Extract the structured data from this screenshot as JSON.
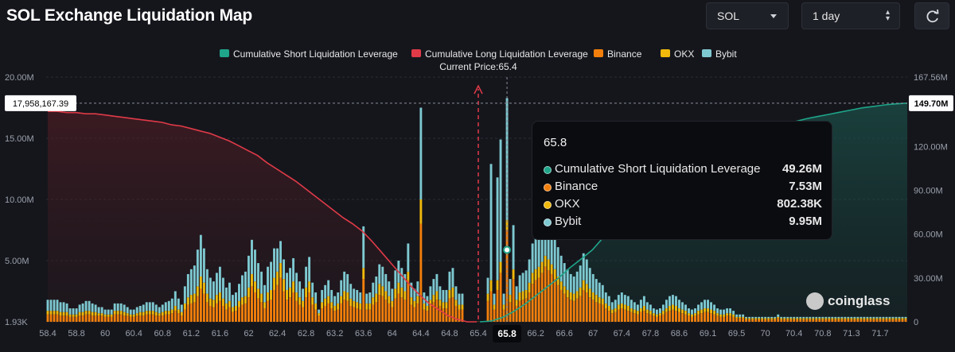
{
  "header": {
    "title": "SOL Exchange Liquidation Map",
    "symbol_select": "SOL",
    "range_select": "1 day"
  },
  "colors": {
    "background": "#15161c",
    "short_line": "#1ea58a",
    "long_line": "#e03a48",
    "binance": "#f27f0c",
    "okx": "#f0b90b",
    "bybit": "#7ec9d1"
  },
  "icons": {
    "symbol_caret": "chevron-down-icon",
    "range_caret": "up-down-icon",
    "refresh": "refresh-icon",
    "watermark": "coinglass-logo-icon"
  },
  "tooltip": {
    "title": "65.8",
    "rows": [
      {
        "label": "Cumulative Short Liquidation Leverage",
        "value": "49.26M",
        "color": "#1ea58a"
      },
      {
        "label": "Binance",
        "value": "7.53M",
        "color": "#f27f0c"
      },
      {
        "label": "OKX",
        "value": "802.38K",
        "color": "#f0b90b"
      },
      {
        "label": "Bybit",
        "value": "9.95M",
        "color": "#7ec9d1"
      }
    ]
  },
  "watermark": "coinglass",
  "chart_data": {
    "type": "bar",
    "legend": [
      "Cumulative Short Liquidation Leverage",
      "Cumulative Long Liquidation Leverage",
      "Binance",
      "OKX",
      "Bybit"
    ],
    "legend_position": "top-center",
    "current_price_label": "Current Price:65.4",
    "current_price": 65.4,
    "hover_value_left": "17,958,167.39",
    "hover_value_right": "149.70M",
    "hover_category": "65.8",
    "left_axis": {
      "ticks": [
        "20.00M",
        "15.00M",
        "10.00M",
        "5.00M",
        "1.93K"
      ],
      "values": [
        20000000,
        15000000,
        10000000,
        5000000,
        1930
      ],
      "ylim": [
        0,
        20000000
      ]
    },
    "right_axis": {
      "ticks": [
        "167.56M",
        "120.00M",
        "90.00M",
        "60.00M",
        "30.00M",
        "0"
      ],
      "values": [
        167560000,
        120000000,
        90000000,
        60000000,
        30000000,
        0
      ],
      "ylim": [
        0,
        167560000
      ]
    },
    "x_labels": [
      "58.4",
      "58.8",
      "60",
      "60.4",
      "60.8",
      "61.2",
      "61.6",
      "62",
      "62.4",
      "62.8",
      "63.2",
      "63.6",
      "64",
      "64.4",
      "64.8",
      "65.4",
      "65.8",
      "66.2",
      "66.6",
      "67",
      "67.4",
      "67.8",
      "68.6",
      "69.1",
      "69.5",
      "70",
      "70.4",
      "70.8",
      "71.3",
      "71.7"
    ],
    "x_label_index": [
      0,
      9,
      18,
      27,
      36,
      45,
      54,
      63,
      72,
      81,
      90,
      99,
      108,
      117,
      126,
      135,
      144,
      153,
      162,
      171,
      180,
      189,
      198,
      207,
      216,
      225,
      234,
      243,
      252,
      261
    ],
    "bar_count": 270,
    "bars_binance": [
      0.6,
      0.6,
      0.6,
      0.6,
      0.5,
      0.5,
      0.5,
      0.4,
      0.4,
      0.4,
      0.5,
      0.5,
      0.6,
      0.6,
      0.5,
      0.5,
      0.5,
      0.5,
      0.4,
      0.4,
      0.4,
      0.6,
      0.6,
      0.6,
      0.5,
      0.5,
      0.4,
      0.4,
      0.5,
      0.5,
      0.5,
      0.6,
      0.6,
      0.6,
      0.5,
      0.5,
      0.5,
      0.6,
      0.6,
      0.7,
      0.9,
      0.7,
      0.5,
      1.0,
      1.4,
      1.5,
      1.6,
      2.1,
      2.7,
      2.3,
      1.6,
      1.3,
      1.2,
      1.5,
      1.7,
      1.3,
      1.0,
      1.2,
      0.8,
      0.9,
      1.2,
      1.4,
      1.5,
      2.0,
      2.9,
      2.4,
      1.9,
      1.6,
      1.1,
      1.7,
      1.8,
      2.6,
      3.0,
      3.6,
      2.5,
      1.8,
      2.0,
      2.4,
      1.7,
      1.4,
      1.2,
      2.0,
      2.4,
      1.4,
      1.0,
      0.8,
      1.1,
      1.3,
      1.5,
      1.1,
      0.9,
      1.0,
      1.5,
      1.8,
      1.7,
      1.3,
      1.2,
      1.1,
      1.0,
      0.9,
      1.0,
      1.0,
      1.4,
      1.6,
      2.2,
      2.1,
      1.8,
      1.5,
      1.2,
      1.9,
      2.3,
      2.0,
      1.8,
      1.6,
      1.4,
      1.2,
      1.5,
      1.4,
      1.0,
      0.9,
      1.3,
      1.6,
      1.8,
      1.3,
      1.1,
      1.1,
      1.9,
      2.0,
      1.3,
      1.0,
      1.0,
      1.5,
      1.6,
      1.3,
      1.0,
      0.9,
      1.3,
      1.5,
      1.7,
      1.4,
      1.0,
      0.8,
      0.6,
      1.0,
      1.5,
      1.6,
      1.5,
      1.3,
      1.7,
      1.8,
      1.9,
      2.4,
      3.1,
      3.4,
      3.6,
      4.0,
      4.5,
      4.2,
      3.9,
      3.5,
      3.0,
      2.6,
      2.3,
      2.0,
      1.8,
      1.7,
      1.9,
      2.1,
      2.6,
      2.4,
      2.0,
      1.8,
      1.6,
      1.5,
      1.4,
      1.1,
      0.9,
      0.7,
      0.8,
      1.0,
      1.1,
      1.0,
      0.9,
      0.8,
      0.7,
      0.6,
      0.8,
      0.9,
      0.7,
      0.6,
      0.5,
      0.4,
      0.5,
      0.6,
      0.8,
      0.9,
      1.0,
      0.9,
      0.8,
      0.7,
      0.6,
      0.5,
      0.4,
      0.5,
      0.6,
      0.7,
      0.8,
      0.8,
      0.7,
      0.6,
      0.5,
      0.4,
      0.4,
      0.5,
      0.5,
      0.4,
      0.3,
      0.3,
      0.3,
      0.2,
      0.2,
      0.2,
      0.2,
      0.2,
      0.2,
      0.2,
      0.2,
      0.2,
      0.2,
      0.3,
      0.2,
      0.2,
      0.2,
      0.2,
      0.2,
      0.2,
      0.2,
      0.2,
      0.2,
      0.2,
      0.2,
      0.2,
      0.2,
      0.2,
      0.2,
      0.2,
      0.2,
      0.2,
      0.2,
      0.2,
      0.2,
      0.2,
      0.2,
      0.2,
      0.2,
      0.2,
      0.2,
      0.2,
      0.2,
      0.2,
      0.2,
      0.2,
      0.2,
      0.2,
      0.2,
      0.2,
      0.2,
      0.2,
      0.2,
      0.2,
      0.2,
      0.2,
      0.2,
      0.2
    ],
    "bars_okx": [
      0.3,
      0.3,
      0.3,
      0.3,
      0.3,
      0.3,
      0.3,
      0.2,
      0.2,
      0.2,
      0.3,
      0.3,
      0.3,
      0.3,
      0.3,
      0.3,
      0.2,
      0.2,
      0.2,
      0.2,
      0.2,
      0.3,
      0.3,
      0.3,
      0.3,
      0.2,
      0.2,
      0.2,
      0.2,
      0.3,
      0.3,
      0.3,
      0.3,
      0.3,
      0.3,
      0.2,
      0.3,
      0.3,
      0.3,
      0.3,
      0.4,
      0.3,
      0.3,
      0.5,
      0.6,
      0.7,
      0.7,
      0.8,
      1.0,
      0.9,
      0.7,
      0.6,
      0.6,
      0.7,
      0.7,
      0.6,
      0.5,
      0.5,
      0.4,
      0.4,
      0.5,
      0.6,
      0.6,
      0.8,
      1.0,
      0.9,
      0.8,
      0.7,
      0.5,
      0.7,
      0.8,
      1.0,
      1.1,
      1.2,
      1.0,
      0.8,
      0.8,
      0.9,
      0.7,
      0.6,
      0.5,
      0.8,
      0.9,
      0.6,
      0.5,
      0.4,
      0.5,
      0.6,
      0.6,
      0.5,
      0.4,
      0.5,
      0.6,
      0.7,
      0.7,
      0.6,
      0.5,
      0.5,
      0.5,
      0.4,
      0.5,
      0.5,
      0.6,
      0.7,
      0.9,
      0.8,
      0.7,
      0.6,
      0.5,
      0.8,
      0.9,
      0.8,
      0.7,
      0.7,
      0.6,
      0.5,
      0.6,
      0.6,
      0.5,
      0.4,
      0.5,
      0.6,
      0.7,
      0.5,
      0.5,
      0.5,
      0.7,
      0.8,
      0.5,
      0.4,
      0.4,
      0.6,
      0.6,
      0.5,
      0.4,
      0.4,
      0.5,
      0.6,
      0.6,
      0.5,
      0.4,
      0.3,
      0.3,
      0.4,
      0.6,
      0.6,
      0.6,
      0.5,
      0.7,
      0.7,
      0.7,
      0.8,
      0.9,
      0.9,
      0.9,
      0.9,
      0.9,
      0.9,
      0.8,
      0.8,
      0.7,
      0.7,
      0.6,
      0.6,
      0.6,
      0.6,
      0.6,
      0.7,
      0.8,
      0.7,
      0.7,
      0.6,
      0.6,
      0.5,
      0.5,
      0.4,
      0.4,
      0.3,
      0.3,
      0.4,
      0.4,
      0.4,
      0.4,
      0.3,
      0.3,
      0.3,
      0.3,
      0.4,
      0.3,
      0.3,
      0.2,
      0.2,
      0.2,
      0.3,
      0.3,
      0.4,
      0.4,
      0.4,
      0.3,
      0.3,
      0.3,
      0.2,
      0.2,
      0.2,
      0.3,
      0.3,
      0.3,
      0.3,
      0.3,
      0.3,
      0.2,
      0.2,
      0.2,
      0.2,
      0.2,
      0.2,
      0.1,
      0.1,
      0.1,
      0.1,
      0.1,
      0.1,
      0.1,
      0.1,
      0.1,
      0.1,
      0.1,
      0.1,
      0.1,
      0.1,
      0.1,
      0.1,
      0.1,
      0.1,
      0.1,
      0.1,
      0.1,
      0.1,
      0.1,
      0.1,
      0.1,
      0.1,
      0.1,
      0.1,
      0.1,
      0.1,
      0.1,
      0.1,
      0.1,
      0.1,
      0.1,
      0.1,
      0.1,
      0.1,
      0.1,
      0.1,
      0.1,
      0.1,
      0.1,
      0.1,
      0.1,
      0.1,
      0.1,
      0.1,
      0.1,
      0.1,
      0.1,
      0.1,
      0.1,
      0.1,
      0.1,
      0.1,
      0.1,
      0.1,
      0.1
    ],
    "bars_bybit": [
      0.9,
      0.9,
      0.9,
      0.9,
      0.8,
      0.8,
      0.7,
      0.5,
      0.5,
      0.5,
      0.6,
      0.7,
      0.8,
      0.8,
      0.7,
      0.6,
      0.5,
      0.5,
      0.4,
      0.4,
      0.4,
      0.6,
      0.6,
      0.6,
      0.6,
      0.5,
      0.4,
      0.4,
      0.5,
      0.5,
      0.6,
      0.7,
      0.7,
      0.7,
      0.6,
      0.5,
      0.6,
      0.7,
      0.8,
      0.9,
      1.2,
      0.9,
      0.6,
      1.4,
      1.9,
      2.1,
      2.3,
      3.0,
      3.4,
      2.8,
      2.0,
      1.7,
      1.5,
      1.8,
      2.1,
      1.7,
      1.3,
      1.5,
      1.0,
      1.1,
      1.4,
      1.8,
      2.0,
      2.6,
      2.8,
      2.6,
      2.1,
      1.8,
      1.4,
      2.1,
      2.3,
      2.4,
      1.9,
      1.8,
      1.6,
      1.4,
      1.6,
      1.9,
      1.6,
      1.3,
      1.0,
      1.7,
      2.0,
      1.2,
      0.9,
      0.8,
      1.0,
      1.1,
      1.3,
      1.0,
      0.8,
      0.9,
      1.3,
      1.6,
      1.5,
      1.2,
      1.0,
      1.0,
      0.9,
      0.8,
      0.8,
      0.9,
      1.2,
      1.4,
      1.6,
      1.6,
      1.4,
      1.2,
      1.0,
      1.5,
      1.8,
      1.6,
      1.4,
      1.3,
      1.2,
      1.0,
      1.2,
      1.1,
      0.9,
      0.8,
      1.1,
      1.3,
      1.4,
      1.1,
      1.0,
      1.0,
      1.5,
      1.6,
      1.1,
      0.9,
      0.9,
      1.2,
      1.3,
      1.1,
      0.9,
      0.8,
      1.1,
      1.2,
      1.3,
      1.1,
      0.9,
      0.7,
      0.6,
      0.9,
      1.2,
      1.3,
      1.2,
      1.1,
      1.4,
      1.5,
      1.6,
      1.9,
      2.4,
      2.6,
      2.8,
      3.1,
      3.5,
      3.3,
      3.0,
      2.7,
      2.4,
      2.1,
      1.9,
      1.7,
      1.5,
      1.4,
      1.6,
      1.8,
      2.2,
      2.0,
      1.7,
      1.5,
      1.3,
      1.2,
      1.1,
      0.9,
      0.8,
      0.6,
      0.7,
      0.8,
      0.9,
      0.8,
      0.8,
      0.7,
      0.6,
      0.5,
      0.7,
      0.8,
      0.6,
      0.5,
      0.4,
      0.4,
      0.4,
      0.5,
      0.7,
      0.8,
      0.8,
      0.8,
      0.7,
      0.6,
      0.5,
      0.4,
      0.4,
      0.4,
      0.5,
      0.6,
      0.7,
      0.7,
      0.6,
      0.5,
      0.4,
      0.4,
      0.4,
      0.4,
      0.4,
      0.3,
      0.2,
      0.2,
      0.2,
      0.1,
      0.1,
      0.1,
      0.1,
      0.1,
      0.1,
      0.1,
      0.1,
      0.1,
      0.1,
      0.2,
      0.1,
      0.1,
      0.1,
      0.1,
      0.1,
      0.1,
      0.1,
      0.1,
      0.1,
      0.1,
      0.1,
      0.1,
      0.1,
      0.1,
      0.1,
      0.1,
      0.1,
      0.1,
      0.1,
      0.1,
      0.1,
      0.1,
      0.1,
      0.1,
      0.1,
      0.1,
      0.1,
      0.1,
      0.1,
      0.1,
      0.1,
      0.1,
      0.1,
      0.1,
      0.1,
      0.1,
      0.1,
      0.1,
      0.1,
      0.1,
      0.1,
      0.1,
      0.1,
      0.1
    ],
    "bar_overrides_millions": {
      "117": [
        8.0,
        2.0,
        7.5
      ],
      "113": [
        3.4,
        0.7,
        2.3
      ],
      "139": [
        2.5,
        0.9,
        9.5
      ],
      "141": [
        2.6,
        0.8,
        8.4
      ],
      "142": [
        4.0,
        0.9,
        10.0
      ],
      "144": [
        7.53,
        0.80238,
        9.95
      ],
      "146": [
        3.5,
        0.8,
        3.6
      ],
      "99": [
        3.5,
        0.9,
        3.4
      ],
      "85": [
        0.5,
        0.2,
        0.3
      ]
    },
    "long_cumulative_millions": [
      17.2,
      17.2,
      17.1,
      17.1,
      17.0,
      17.0,
      16.9,
      16.8,
      16.7,
      16.6,
      16.5,
      16.4,
      16.3,
      16.1,
      16.0,
      15.8,
      15.6,
      15.4,
      15.1,
      14.8,
      14.4,
      14.0,
      13.6,
      13.0,
      12.5,
      12.0,
      11.5,
      10.9,
      10.3,
      9.7,
      9.1,
      8.5,
      8.0,
      7.4,
      6.6,
      5.7,
      4.8,
      3.9,
      3.0,
      2.2,
      1.5,
      1.0,
      0.5,
      0.2,
      0.0,
      0.0
    ],
    "short_cumulative_millions": [
      0.0,
      0.5,
      3.0,
      7.0,
      12.0,
      18.0,
      24.0,
      30.0,
      37.0,
      43.0,
      49.26,
      58.0,
      70.0,
      85.0,
      97.0,
      105.0,
      110.0,
      114.0,
      117.0,
      119.0,
      121.0,
      123.0,
      125.0,
      127.0,
      129.0,
      131.0,
      133.0,
      135.0,
      137.0,
      139.0,
      140.5,
      142.0,
      143.5,
      145.0,
      146.5,
      147.5,
      148.5,
      149.2,
      149.7
    ]
  }
}
